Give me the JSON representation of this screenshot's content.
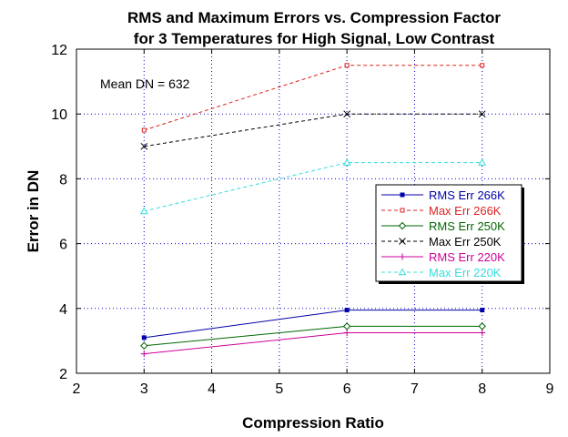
{
  "chart_data": {
    "type": "line",
    "title_line1": "RMS and Maximum Errors vs. Compression Factor",
    "title_line2": "for 3 Temperatures for High Signal, Low Contrast",
    "xlabel": "Compression Ratio",
    "ylabel": "Error in DN",
    "annotation": "Mean DN = 632",
    "xlim": [
      2,
      9
    ],
    "ylim": [
      2,
      12
    ],
    "xticks": [
      2,
      3,
      4,
      5,
      6,
      7,
      8,
      9
    ],
    "yticks": [
      2,
      4,
      6,
      8,
      10,
      12
    ],
    "grid": true,
    "legend_position": "right",
    "x": [
      3,
      6,
      8
    ],
    "series": [
      {
        "name": "RMS Err 266K",
        "values": [
          3.1,
          3.95,
          3.95
        ],
        "color": "#0000aa",
        "dash": "solid",
        "marker": "square"
      },
      {
        "name": "Max Err 266K",
        "values": [
          9.5,
          11.5,
          11.5
        ],
        "color": "#dd2222",
        "dash": "dashed",
        "marker": "square-open"
      },
      {
        "name": "RMS Err 250K",
        "values": [
          2.85,
          3.45,
          3.45
        ],
        "color": "#006600",
        "dash": "solid",
        "marker": "diamond"
      },
      {
        "name": "Max Err 250K",
        "values": [
          9.0,
          10.0,
          10.0
        ],
        "color": "#000000",
        "dash": "dashed",
        "marker": "x"
      },
      {
        "name": "RMS Err 220K",
        "values": [
          2.6,
          3.25,
          3.25
        ],
        "color": "#cc0099",
        "dash": "solid",
        "marker": "plus"
      },
      {
        "name": "Max Err 220K",
        "values": [
          7.0,
          8.5,
          8.5
        ],
        "color": "#33dddd",
        "dash": "dashed",
        "marker": "triangle"
      }
    ]
  }
}
